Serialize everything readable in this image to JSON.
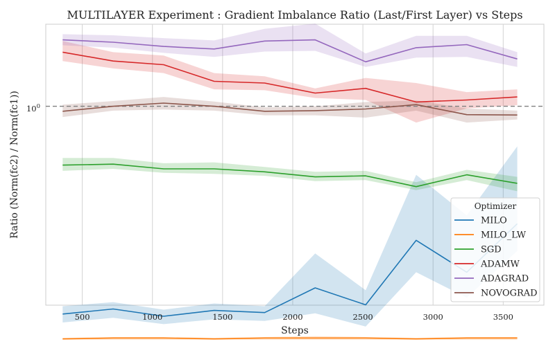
{
  "chart_data": {
    "type": "line",
    "title": "MULTILAYER Experiment : Gradient Imbalance Ratio (Last/First Layer) vs Steps",
    "xlabel": "Steps",
    "ylabel": "Ratio (Norm(fc2) / Norm(fc1))",
    "xlim": [
      240,
      3790
    ],
    "ylim_log10": [
      -0.8,
      0.33
    ],
    "y_scale": "log",
    "x_ticks": [
      500,
      1000,
      1500,
      2000,
      2500,
      3000,
      3500
    ],
    "y_tick_label": {
      "base": "10",
      "exp": "0"
    },
    "reference_line": {
      "y": 1.0,
      "style": "dashed",
      "color": "#7f7f7f"
    },
    "grid": true,
    "legend": {
      "title": "Optimizer",
      "placement": "lower-right"
    },
    "x": [
      360,
      720,
      1080,
      1440,
      1800,
      2160,
      2520,
      2880,
      3240,
      3600
    ],
    "series": [
      {
        "name": "MILO",
        "color": "#1f77b4",
        "values": [
          0.146,
          0.153,
          0.143,
          0.151,
          0.148,
          0.186,
          0.159,
          0.289,
          0.215,
          0.337
        ],
        "lower": [
          0.135,
          0.141,
          0.133,
          0.139,
          0.137,
          0.147,
          0.13,
          0.215,
          0.17,
          0.262
        ],
        "upper": [
          0.157,
          0.163,
          0.152,
          0.161,
          0.157,
          0.256,
          0.182,
          0.53,
          0.364,
          0.69
        ]
      },
      {
        "name": "MILO_LW",
        "color": "#ff7f0e",
        "values": [
          0.116,
          0.117,
          0.117,
          0.116,
          0.117,
          0.117,
          0.117,
          0.116,
          0.117,
          0.117
        ],
        "lower": [
          0.115,
          0.115,
          0.115,
          0.115,
          0.115,
          0.115,
          0.115,
          0.115,
          0.115,
          0.115
        ],
        "upper": [
          0.117,
          0.118,
          0.118,
          0.117,
          0.118,
          0.119,
          0.118,
          0.117,
          0.118,
          0.118
        ]
      },
      {
        "name": "SGD",
        "color": "#2ca02c",
        "values": [
          0.58,
          0.585,
          0.56,
          0.56,
          0.545,
          0.52,
          0.525,
          0.475,
          0.53,
          0.49
        ],
        "lower": [
          0.55,
          0.56,
          0.54,
          0.535,
          0.525,
          0.5,
          0.505,
          0.46,
          0.505,
          0.455
        ],
        "upper": [
          0.62,
          0.62,
          0.59,
          0.595,
          0.57,
          0.545,
          0.55,
          0.495,
          0.555,
          0.52
        ]
      },
      {
        "name": "ADAMW",
        "color": "#d62728",
        "values": [
          1.65,
          1.52,
          1.47,
          1.26,
          1.24,
          1.13,
          1.18,
          1.04,
          1.06,
          1.09
        ],
        "lower": [
          1.52,
          1.42,
          1.36,
          1.17,
          1.16,
          1.08,
          1.06,
          0.86,
          0.98,
          1.01
        ],
        "upper": [
          1.83,
          1.65,
          1.6,
          1.36,
          1.32,
          1.18,
          1.3,
          1.24,
          1.14,
          1.17
        ]
      },
      {
        "name": "ADAGRAD",
        "color": "#9467bd",
        "values": [
          1.85,
          1.81,
          1.74,
          1.7,
          1.83,
          1.85,
          1.51,
          1.72,
          1.77,
          1.55
        ],
        "lower": [
          1.76,
          1.72,
          1.64,
          1.58,
          1.66,
          1.67,
          1.44,
          1.57,
          1.58,
          1.44
        ],
        "upper": [
          1.95,
          1.93,
          1.88,
          1.84,
          2.05,
          2.15,
          1.63,
          1.92,
          1.92,
          1.65
        ]
      },
      {
        "name": "NOVOGRAD",
        "color": "#8c564b",
        "values": [
          0.955,
          1.0,
          1.03,
          1.0,
          0.955,
          0.96,
          0.975,
          1.015,
          0.925,
          0.922
        ],
        "lower": [
          0.905,
          0.96,
          0.97,
          0.96,
          0.92,
          0.92,
          0.9,
          0.96,
          0.86,
          0.885
        ],
        "upper": [
          1.015,
          1.05,
          1.09,
          1.045,
          0.99,
          1.0,
          1.04,
          1.055,
          0.98,
          0.96
        ]
      }
    ]
  }
}
